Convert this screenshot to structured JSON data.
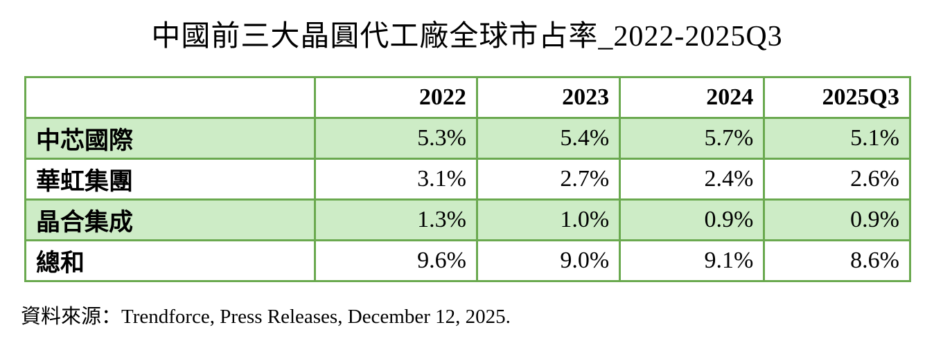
{
  "title": "中國前三大晶圓代工廠全球市占率_2022-2025Q3",
  "source": "資料來源：Trendforce, Press Releases, December 12, 2025.",
  "colors": {
    "table_border_green": "#6aa94f",
    "row_highlight_green": "#cdecc6",
    "text": "#000000",
    "background": "#ffffff"
  },
  "table": {
    "col_widths_pct": [
      32.7,
      18.35,
      16.15,
      16.3,
      16.5
    ],
    "headers": [
      "",
      "2022",
      "2023",
      "2024",
      "2025Q3"
    ],
    "rows": [
      {
        "label": "中芯國際",
        "values": [
          "5.3%",
          "5.4%",
          "5.7%",
          "5.1%"
        ],
        "highlight": true
      },
      {
        "label": "華虹集團",
        "values": [
          "3.1%",
          "2.7%",
          "2.4%",
          "2.6%"
        ],
        "highlight": false
      },
      {
        "label": "晶合集成",
        "values": [
          "1.3%",
          "1.0%",
          "0.9%",
          "0.9%"
        ],
        "highlight": true
      },
      {
        "label": "總和",
        "values": [
          "9.6%",
          "9.0%",
          "9.1%",
          "8.6%"
        ],
        "highlight": false
      }
    ]
  },
  "chart_data": {
    "type": "table",
    "title": "中國前三大晶圓代工廠全球市占率_2022-2025Q3",
    "categories": [
      "2022",
      "2023",
      "2024",
      "2025Q3"
    ],
    "series": [
      {
        "name": "中芯國際",
        "values": [
          5.3,
          5.4,
          5.7,
          5.1
        ]
      },
      {
        "name": "華虹集團",
        "values": [
          3.1,
          2.7,
          2.4,
          2.6
        ]
      },
      {
        "name": "晶合集成",
        "values": [
          1.3,
          1.0,
          0.9,
          0.9
        ]
      },
      {
        "name": "總和",
        "values": [
          9.6,
          9.0,
          9.1,
          8.6
        ]
      }
    ],
    "unit": "%",
    "source": "Trendforce, Press Releases, December 12, 2025."
  }
}
